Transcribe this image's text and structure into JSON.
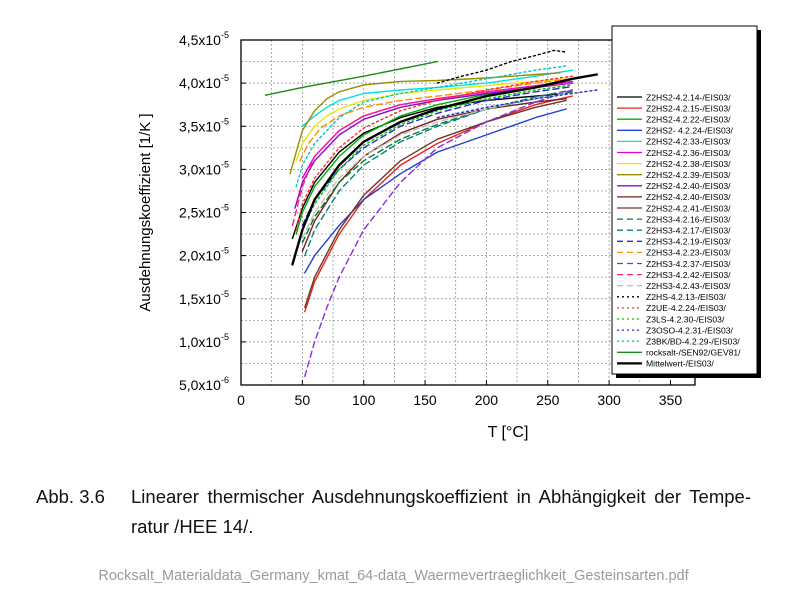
{
  "chart_data": {
    "type": "line",
    "xlabel": "T [°C]",
    "ylabel": "Ausdehnungskoeffizient [1/K ]",
    "xlim": [
      0,
      370
    ],
    "ylim": [
      5e-06,
      4.5e-05
    ],
    "x_ticks": [
      "0",
      "50",
      "100",
      "150",
      "200",
      "250",
      "300",
      "350"
    ],
    "y_ticks": [
      {
        "mant": "5,0x10",
        "exp": "-6"
      },
      {
        "mant": "1,0x10",
        "exp": "-5"
      },
      {
        "mant": "1,5x10",
        "exp": "-5"
      },
      {
        "mant": "2,0x10",
        "exp": "-5"
      },
      {
        "mant": "2,5x10",
        "exp": "-5"
      },
      {
        "mant": "3,0x10",
        "exp": "-5"
      },
      {
        "mant": "3,5x10",
        "exp": "-5"
      },
      {
        "mant": "4,0x10",
        "exp": "-5"
      },
      {
        "mant": "4,5x10",
        "exp": "-5"
      }
    ],
    "grid": true,
    "legend_position": "right",
    "series": [
      {
        "name": "Z2HS2-4.2.14-/EIS03/",
        "color": "#000000",
        "dash": "solid",
        "x": [
          42,
          50,
          60,
          80,
          100,
          130,
          160,
          200,
          240,
          265
        ],
        "y": [
          2.2e-05,
          2.55e-05,
          2.85e-05,
          3.2e-05,
          3.42e-05,
          3.6e-05,
          3.72e-05,
          3.8e-05,
          3.85e-05,
          3.88e-05
        ]
      },
      {
        "name": "Z2HS2-4.2.15-/EIS03/",
        "color": "#e8231c",
        "dash": "solid",
        "x": [
          52,
          60,
          80,
          100,
          130,
          160,
          200,
          240,
          270
        ],
        "y": [
          1.35e-05,
          1.7e-05,
          2.25e-05,
          2.65e-05,
          3.05e-05,
          3.3e-05,
          3.55e-05,
          3.75e-05,
          3.85e-05
        ]
      },
      {
        "name": "Z2HS2-4.2.22-/EIS03/",
        "color": "#00b000",
        "dash": "solid",
        "x": [
          45,
          50,
          60,
          80,
          100,
          130,
          160,
          200,
          240,
          270
        ],
        "y": [
          2.25e-05,
          2.5e-05,
          2.8e-05,
          3.15e-05,
          3.4e-05,
          3.62e-05,
          3.75e-05,
          3.87e-05,
          3.95e-05,
          4e-05
        ]
      },
      {
        "name": "Z2HS2- 4.2.24-/EIS03/",
        "color": "#1f3fd8",
        "dash": "solid",
        "x": [
          52,
          60,
          80,
          100,
          130,
          160,
          200,
          240,
          265
        ],
        "y": [
          1.8e-05,
          2e-05,
          2.35e-05,
          2.65e-05,
          2.95e-05,
          3.2e-05,
          3.4e-05,
          3.6e-05,
          3.7e-05
        ]
      },
      {
        "name": "Z2HS2-4.2.33-/EIS03/",
        "color": "#00e0e0",
        "dash": "solid",
        "x": [
          50,
          60,
          70,
          80,
          100,
          130,
          160,
          200,
          240,
          270
        ],
        "y": [
          3.5e-05,
          3.62e-05,
          3.72e-05,
          3.8e-05,
          3.88e-05,
          3.92e-05,
          3.95e-05,
          4e-05,
          4.08e-05,
          4.15e-05
        ]
      },
      {
        "name": "Z2HS2-4.2.36-/EIS03/",
        "color": "#e000e0",
        "dash": "solid",
        "x": [
          50,
          60,
          80,
          100,
          130,
          160,
          200,
          240,
          270
        ],
        "y": [
          2.9e-05,
          3.15e-05,
          3.45e-05,
          3.62e-05,
          3.75e-05,
          3.82e-05,
          3.9e-05,
          3.97e-05,
          4.02e-05
        ]
      },
      {
        "name": "Z2HS2-4.2.38-/EIS03/",
        "color": "#e8e800",
        "dash": "solid",
        "x": [
          45,
          50,
          60,
          70,
          80,
          100,
          130,
          160,
          200,
          240,
          265
        ],
        "y": [
          3.1e-05,
          3.3e-05,
          3.5e-05,
          3.62e-05,
          3.7e-05,
          3.8e-05,
          3.88e-05,
          3.92e-05,
          3.97e-05,
          4.02e-05,
          4.05e-05
        ]
      },
      {
        "name": "Z2HS2-4.2.39-/EIS03/",
        "color": "#9b8d00",
        "dash": "solid",
        "x": [
          40,
          45,
          50,
          60,
          70,
          80,
          100,
          130,
          160,
          200,
          240,
          260
        ],
        "y": [
          2.95e-05,
          3.2e-05,
          3.45e-05,
          3.68e-05,
          3.82e-05,
          3.9e-05,
          3.98e-05,
          4.02e-05,
          4.03e-05,
          4.06e-05,
          4.1e-05,
          4.12e-05
        ]
      },
      {
        "name": "Z2HS2-4.2.40-/EIS03/",
        "color": "#8a0ad0",
        "dash": "solid",
        "x": [
          44,
          50,
          60,
          80,
          100,
          130,
          160,
          200,
          240,
          270
        ],
        "y": [
          2.55e-05,
          2.85e-05,
          3.1e-05,
          3.4e-05,
          3.58e-05,
          3.72e-05,
          3.8e-05,
          3.88e-05,
          3.95e-05,
          4e-05
        ]
      },
      {
        "name": "Z2HS2-4.2.40-/EIS03/",
        "color": "#7a1e1e",
        "dash": "solid",
        "x": [
          50,
          60,
          80,
          100,
          130,
          160,
          200,
          240,
          265
        ],
        "y": [
          2.05e-05,
          2.4e-05,
          2.85e-05,
          3.15e-05,
          3.42e-05,
          3.58e-05,
          3.7e-05,
          3.78e-05,
          3.82e-05
        ]
      },
      {
        "name": "Z2HS2-4.2.41-/EIS03/",
        "color": "#6a3a2a",
        "dash": "solid",
        "x": [
          52,
          60,
          80,
          100,
          130,
          160,
          200,
          240,
          265
        ],
        "y": [
          1.4e-05,
          1.75e-05,
          2.3e-05,
          2.7e-05,
          3.1e-05,
          3.35e-05,
          3.55e-05,
          3.72e-05,
          3.8e-05
        ]
      },
      {
        "name": "Z2HS3-4.2.16-/EIS03/",
        "color": "#00802a",
        "dash": "dash",
        "x": [
          50,
          60,
          80,
          100,
          130,
          160,
          200,
          240,
          270
        ],
        "y": [
          2.15e-05,
          2.45e-05,
          2.85e-05,
          3.1e-05,
          3.35e-05,
          3.52e-05,
          3.7e-05,
          3.82e-05,
          3.9e-05
        ]
      },
      {
        "name": "Z2HS3-4.2.17-/EIS03/",
        "color": "#008080",
        "dash": "dash",
        "x": [
          52,
          60,
          80,
          100,
          130,
          160,
          200,
          240,
          270
        ],
        "y": [
          2e-05,
          2.3e-05,
          2.75e-05,
          3.05e-05,
          3.32e-05,
          3.5e-05,
          3.7e-05,
          3.84e-05,
          3.92e-05
        ]
      },
      {
        "name": "Z2HS3-4.2.19-/EIS03/",
        "color": "#2a2ad8",
        "dash": "dash",
        "x": [
          50,
          60,
          80,
          100,
          130,
          160,
          200,
          240,
          270
        ],
        "y": [
          2.35e-05,
          2.65e-05,
          3e-05,
          3.25e-05,
          3.5e-05,
          3.65e-05,
          3.8e-05,
          3.9e-05,
          3.96e-05
        ]
      },
      {
        "name": "Z2HS3-4.2.23-/EIS03/",
        "color": "#ff8c00",
        "dash": "dash",
        "x": [
          48,
          55,
          65,
          80,
          100,
          130,
          160,
          200,
          240,
          270
        ],
        "y": [
          3.1e-05,
          3.3e-05,
          3.48e-05,
          3.62e-05,
          3.72e-05,
          3.8e-05,
          3.85e-05,
          3.92e-05,
          4e-05,
          4.05e-05
        ]
      },
      {
        "name": "Z2HS3-4.2.37-/EIS03/",
        "color": "#8a2be2",
        "dash": "dash",
        "x": [
          52,
          60,
          70,
          80,
          100,
          130,
          160,
          200,
          240,
          270
        ],
        "y": [
          6e-06,
          1e-05,
          1.4e-05,
          1.75e-05,
          2.3e-05,
          2.85e-05,
          3.25e-05,
          3.55e-05,
          3.78e-05,
          3.92e-05
        ]
      },
      {
        "name": "Z2HS3-4.2.42-/EIS03/",
        "color": "#ff2080",
        "dash": "dash",
        "x": [
          42,
          50,
          60,
          80,
          100,
          130,
          160,
          200,
          240,
          270
        ],
        "y": [
          2.35e-05,
          2.8e-05,
          3.15e-05,
          3.45e-05,
          3.62e-05,
          3.75e-05,
          3.82e-05,
          3.9e-05,
          3.96e-05,
          4e-05
        ]
      },
      {
        "name": "Z2HS3-4.2.43-/EIS03/",
        "color": "#c0c0c0",
        "dash": "dash",
        "x": [
          50,
          60,
          80,
          100,
          130,
          160,
          200,
          240,
          265
        ],
        "y": [
          2.2e-05,
          2.5e-05,
          2.9e-05,
          3.15e-05,
          3.4e-05,
          3.55e-05,
          3.7e-05,
          3.82e-05,
          3.88e-05
        ]
      },
      {
        "name": "Z2HS-4.2.13-/EIS03/",
        "color": "#000000",
        "dash": "dot",
        "x": [
          160,
          180,
          200,
          220,
          240,
          255,
          265
        ],
        "y": [
          4e-05,
          4.08e-05,
          4.15e-05,
          4.25e-05,
          4.32e-05,
          4.38e-05,
          4.36e-05
        ]
      },
      {
        "name": "Z2UE-4.2.24-/EIS03/",
        "color": "#ff2a2a",
        "dash": "dot",
        "x": [
          45,
          50,
          60,
          80,
          100,
          130,
          160,
          200,
          240,
          270
        ],
        "y": [
          2.3e-05,
          2.6e-05,
          2.9e-05,
          3.25e-05,
          3.48e-05,
          3.68e-05,
          3.8e-05,
          3.92e-05,
          4.02e-05,
          4.08e-05
        ]
      },
      {
        "name": "Z3LS-4.2.30-/EIS03/",
        "color": "#00c000",
        "dash": "dot",
        "x": [
          50,
          60,
          80,
          100,
          130,
          160,
          200,
          240,
          270
        ],
        "y": [
          2.3e-05,
          2.6e-05,
          3e-05,
          3.28e-05,
          3.52e-05,
          3.68e-05,
          3.82e-05,
          3.92e-05,
          3.98e-05
        ]
      },
      {
        "name": "Z3OSO-4.2.31-/EIS03/",
        "color": "#2a2ad8",
        "dash": "dot",
        "x": [
          160,
          200,
          240,
          270,
          290
        ],
        "y": [
          3.6e-05,
          3.72e-05,
          3.82e-05,
          3.88e-05,
          3.92e-05
        ]
      },
      {
        "name": "Z3BK/BD-4.2.29-/EIS03/",
        "color": "#00c8c8",
        "dash": "dot",
        "x": [
          45,
          50,
          60,
          80,
          100,
          130,
          160,
          200,
          240,
          265
        ],
        "y": [
          2.8e-05,
          3.05e-05,
          3.3e-05,
          3.6e-05,
          3.78e-05,
          3.88e-05,
          3.95e-05,
          4.05e-05,
          4.15e-05,
          4.2e-05
        ]
      },
      {
        "name": "rocksalt-/SEN92/GEV81/",
        "color": "#1a8a1a",
        "dash": "solid",
        "x": [
          20,
          50,
          100,
          160
        ],
        "y": [
          3.86e-05,
          3.95e-05,
          4.08e-05,
          4.25e-05
        ]
      },
      {
        "name": "Mittelwert-/EIS03/",
        "color": "#000000",
        "dash": "solid",
        "bold": true,
        "x": [
          42,
          50,
          60,
          80,
          100,
          130,
          160,
          200,
          240,
          270,
          290
        ],
        "y": [
          1.9e-05,
          2.3e-05,
          2.65e-05,
          3.05e-05,
          3.32e-05,
          3.55e-05,
          3.7e-05,
          3.85e-05,
          3.95e-05,
          4.05e-05,
          4.1e-05
        ]
      }
    ]
  },
  "caption": {
    "label": "Abb. 3.6",
    "line1": "Linearer thermischer Ausdehnungskoeffizient in Abhängigkeit der Tempe-",
    "line2": "ratur /HEE 14/."
  },
  "footer": "Rocksalt_Materialdata_Germany_kmat_64-data_Waermevertraeglichkeit_Gesteinsarten.pdf"
}
